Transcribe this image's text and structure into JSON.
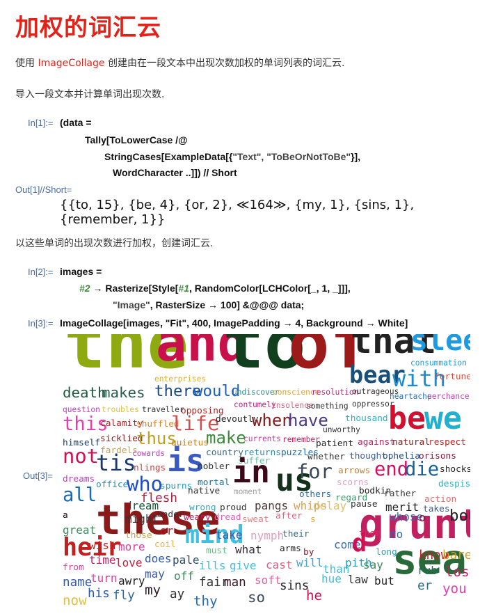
{
  "page": {
    "title": "加权的词汇云",
    "intro_prefix": "使用 ",
    "intro_link": "ImageCollage",
    "intro_suffix": " 创建由在一段文本中出现次数加权的单词列表的词汇云.",
    "step1": "导入一段文本并计算单词出现次数.",
    "step2": "以这些单词的出现次数进行加权，创建词汇云."
  },
  "cells": {
    "in1_label": "In[1]:=",
    "in1_line1": "(data =",
    "in1_line2": "Tally[ToLowerCase /@",
    "in1_line3a": "StringCases[ExampleData[{",
    "in1_line3b": "\"Text\", \"ToBeOrNotToBe\"",
    "in1_line3c": "}],",
    "in1_line4": "WordCharacter ..]]) // Short",
    "out1_label": "Out[1]//Short=",
    "out1_value": "{{to, 15}, {be, 4}, {or, 2}, ≪164≫, {my, 1}, {sins, 1}, {remember, 1}}",
    "in2_label": "In[2]:=",
    "in2_line1": "images =",
    "in2_line2a": "#2",
    "in2_line2b": " → Rasterize[Style[",
    "in2_line2c": "#1",
    "in2_line2d": ", RandomColor[LCHColor[_, 1, _]]],",
    "in2_line3a": "\"Image\"",
    "in2_line3b": ", RasterSize → 100] &@@@ data;",
    "in3_label": "In[3]:=",
    "in3_line1": "ImageCollage[images, \"Fit\", 400, ImagePadding → 4, Background → White]",
    "out3_label": "Out[3]="
  },
  "word_cloud": [
    {
      "w": "the",
      "c": "#8faa10"
    },
    {
      "w": "and",
      "c": "#c8104a"
    },
    {
      "w": "to",
      "c": "#12401f"
    },
    {
      "w": "of",
      "c": "#9c1a1a"
    },
    {
      "w": "that",
      "c": "#222222"
    },
    {
      "w": "sleep",
      "c": "#1e9be0"
    },
    {
      "w": "consummation",
      "c": "#1e9be0"
    },
    {
      "w": "bear",
      "c": "#1a4f7a"
    },
    {
      "w": "with",
      "c": "#1a8bd0"
    },
    {
      "w": "fortune",
      "c": "#d8503a"
    },
    {
      "w": "enterprises",
      "c": "#e0b020"
    },
    {
      "w": "death",
      "c": "#1e5a3a"
    },
    {
      "w": "makes",
      "c": "#2a5a50"
    },
    {
      "w": "there",
      "c": "#1a4a8a"
    },
    {
      "w": "would",
      "c": "#1a60c0"
    },
    {
      "w": "undiscover",
      "c": "#2a8a8a"
    },
    {
      "w": "conscience",
      "c": "#e8a030"
    },
    {
      "w": "resolution",
      "c": "#c02080"
    },
    {
      "w": "outrageous",
      "c": "#333333"
    },
    {
      "w": "heartache",
      "c": "#2a70c0"
    },
    {
      "w": "perchance",
      "c": "#c040c0"
    },
    {
      "w": "question",
      "c": "#c040c0"
    },
    {
      "w": "troubles",
      "c": "#e0c040"
    },
    {
      "w": "traveller",
      "c": "#333333"
    },
    {
      "w": "opposing",
      "c": "#c02020"
    },
    {
      "w": "contumely",
      "c": "#c02080"
    },
    {
      "w": "insolence",
      "c": "#e06080"
    },
    {
      "w": "something",
      "c": "#333333"
    },
    {
      "w": "oppressor",
      "c": "#333333"
    },
    {
      "w": "this",
      "c": "#e040b0"
    },
    {
      "w": "calamity",
      "c": "#c02020"
    },
    {
      "w": "shuffled",
      "c": "#e08020"
    },
    {
      "w": "life",
      "c": "#d05050"
    },
    {
      "w": "devoutly",
      "c": "#222222"
    },
    {
      "w": "when",
      "c": "#8a1a1a"
    },
    {
      "w": "have",
      "c": "#4a3a8a"
    },
    {
      "w": "thousand",
      "c": "#2ab0c0"
    },
    {
      "w": "be",
      "c": "#d01030"
    },
    {
      "w": "we",
      "c": "#20b0d0"
    },
    {
      "w": "unworthy",
      "c": "#333333"
    },
    {
      "w": "himself",
      "c": "#1a3a6a"
    },
    {
      "w": "sicklied",
      "c": "#8a1a1a"
    },
    {
      "w": "thus",
      "c": "#c0a020"
    },
    {
      "w": "quietus",
      "c": "#d08020"
    },
    {
      "w": "make",
      "c": "#3a8a3a"
    },
    {
      "w": "currents",
      "c": "#c040a0"
    },
    {
      "w": "remember",
      "c": "#c02060"
    },
    {
      "w": "patient",
      "c": "#222222"
    },
    {
      "w": "against",
      "c": "#c02060"
    },
    {
      "w": "natural",
      "c": "#8a1a1a"
    },
    {
      "w": "respect",
      "c": "#c02020"
    },
    {
      "w": "fardels",
      "c": "#c0a060"
    },
    {
      "w": "cowards",
      "c": "#c040c0"
    },
    {
      "w": "country",
      "c": "#3a6a8a"
    },
    {
      "w": "returns",
      "c": "#2a8ab0"
    },
    {
      "w": "puzzles",
      "c": "#1a6ab0"
    },
    {
      "w": "whether",
      "c": "#333333"
    },
    {
      "w": "thought",
      "c": "#3a5aa0"
    },
    {
      "w": "ophelia",
      "c": "#1a4a8a"
    },
    {
      "w": "orisons",
      "c": "#8a1a3a"
    },
    {
      "w": "not",
      "c": "#d01050"
    },
    {
      "w": "tis",
      "c": "#1a3a6a"
    },
    {
      "w": "nlings",
      "c": "#d04040"
    },
    {
      "w": "is",
      "c": "#3a5ac0"
    },
    {
      "w": "nobler",
      "c": "#333333"
    },
    {
      "w": "suffer",
      "c": "#60c0a0"
    },
    {
      "w": "in",
      "c": "#3a0a1a"
    },
    {
      "w": "us",
      "c": "#12301a"
    },
    {
      "w": "for",
      "c": "#3a4a5a"
    },
    {
      "w": "arrows",
      "c": "#c08040"
    },
    {
      "w": "end",
      "c": "#d01060"
    },
    {
      "w": "die",
      "c": "#1a60a0"
    },
    {
      "w": "shocks",
      "c": "#222222"
    },
    {
      "w": "despis",
      "c": "#20b0c0"
    },
    {
      "w": "dreams",
      "c": "#c040c0"
    },
    {
      "w": "office",
      "c": "#2a8ab0"
    },
    {
      "w": "who",
      "c": "#1a4ad0"
    },
    {
      "w": "spurns",
      "c": "#20a0c0"
    },
    {
      "w": "mortal",
      "c": "#1a6a9a"
    },
    {
      "w": "scorns",
      "c": "#e0a0c0"
    },
    {
      "w": "all",
      "c": "#1a6ab0"
    },
    {
      "w": "flesh",
      "c": "#b02040"
    },
    {
      "w": "native",
      "c": "#333333"
    },
    {
      "w": "moment",
      "c": "#a0a0a0"
    },
    {
      "w": "others",
      "c": "#2a6ab0"
    },
    {
      "w": "regard",
      "c": "#3aa06a"
    },
    {
      "w": "bodkin",
      "c": "#222222"
    },
    {
      "w": "rather",
      "c": "#3a3a3a"
    },
    {
      "w": "action",
      "c": "#e07070"
    },
    {
      "w": "dream",
      "c": "#1a5a3a"
    },
    {
      "w": "wrong",
      "c": "#40a0c0"
    },
    {
      "w": "proud",
      "c": "#333333"
    },
    {
      "w": "pangs",
      "c": "#4a3a3a"
    },
    {
      "w": "whips",
      "c": "#e0a050"
    },
    {
      "w": "delay",
      "c": "#e0c070"
    },
    {
      "w": "pause",
      "c": "#333333"
    },
    {
      "w": "merit",
      "c": "#222222"
    },
    {
      "w": "takes",
      "c": "#3a5a8a"
    },
    {
      "w": "a",
      "c": "#2a0a0a"
    },
    {
      "w": "these",
      "c": "#8a1a1a"
    },
    {
      "w": "might",
      "c": "#333333"
    },
    {
      "w": "under",
      "c": "#333333"
    },
    {
      "w": "weary",
      "c": "#c02060"
    },
    {
      "w": "dread",
      "c": "#e060c0"
    },
    {
      "w": "sweat",
      "c": "#e08080"
    },
    {
      "w": "after",
      "c": "#e06080"
    },
    {
      "w": "s",
      "c": "#f0a020"
    },
    {
      "w": "grunt",
      "c": "#c02060"
    },
    {
      "w": "whose",
      "c": "#3a6ab0"
    },
    {
      "w": "o",
      "c": "#8a0a3a"
    },
    {
      "w": "bourn",
      "c": "#222222"
    },
    {
      "w": "great",
      "c": "#3a8a5a"
    },
    {
      "w": "those",
      "c": "#c0a040"
    },
    {
      "w": "or",
      "c": "#c01020"
    },
    {
      "w": "mind",
      "c": "#40c0e0"
    },
    {
      "w": "take",
      "c": "#3a5ab0"
    },
    {
      "w": "nymph",
      "c": "#e0a0c0"
    },
    {
      "w": "their",
      "c": "#2a6a8a"
    },
    {
      "w": "them",
      "c": "#e02060"
    },
    {
      "w": "no",
      "c": "#2a6ab0"
    },
    {
      "w": "heir",
      "c": "#c02020"
    },
    {
      "w": "wish",
      "c": "#c02020"
    },
    {
      "w": "more",
      "c": "#e040a0"
    },
    {
      "w": "coil",
      "c": "#f0b040"
    },
    {
      "w": "must",
      "c": "#60c080"
    },
    {
      "w": "what",
      "c": "#3a2a3a"
    },
    {
      "w": "arms",
      "c": "#222222"
    },
    {
      "w": "by",
      "c": "#8a1a2a"
    },
    {
      "w": "come",
      "c": "#3a6ab0"
    },
    {
      "w": "d",
      "c": "#d01050"
    },
    {
      "w": "long",
      "c": "#20a0c0"
    },
    {
      "w": "sea",
      "c": "#2a6a3a"
    },
    {
      "w": "know",
      "c": "#c02020"
    },
    {
      "w": "bare",
      "c": "#d0a020"
    },
    {
      "w": "from",
      "c": "#e040a0"
    },
    {
      "w": "time",
      "c": "#c02060"
    },
    {
      "w": "love",
      "c": "#c02040"
    },
    {
      "w": "does",
      "c": "#2a5ab0"
    },
    {
      "w": "pale",
      "c": "#2a4a6a"
    },
    {
      "w": "ills",
      "c": "#40c0e0"
    },
    {
      "w": "give",
      "c": "#40c0e0"
    },
    {
      "w": "cast",
      "c": "#e06080"
    },
    {
      "w": "will",
      "c": "#40a0e0"
    },
    {
      "w": "than",
      "c": "#40c0e0"
    },
    {
      "w": "pith",
      "c": "#20a0c0"
    },
    {
      "w": "say",
      "c": "#3a8a5a"
    },
    {
      "w": "rub",
      "c": "#1a6a5a"
    },
    {
      "w": "lose",
      "c": "#c02060"
    },
    {
      "w": "name",
      "c": "#3a5ab0"
    },
    {
      "w": "turn",
      "c": "#e040a0"
    },
    {
      "w": "awry",
      "c": "#222222"
    },
    {
      "w": "may",
      "c": "#3a5ab0"
    },
    {
      "w": "off",
      "c": "#3a8a5a"
    },
    {
      "w": "fair",
      "c": "#333333"
    },
    {
      "w": "man",
      "c": "#3a1a2a"
    },
    {
      "w": "soft",
      "c": "#e060a0"
    },
    {
      "w": "sins",
      "c": "#222222"
    },
    {
      "w": "hue",
      "c": "#40c0e0"
    },
    {
      "w": "law",
      "c": "#333333"
    },
    {
      "w": "but",
      "c": "#222222"
    },
    {
      "w": "er",
      "c": "#2a6a8a"
    },
    {
      "w": "you",
      "c": "#e040b0"
    },
    {
      "w": "now",
      "c": "#e0c040"
    },
    {
      "w": "his",
      "c": "#2a5ab0"
    },
    {
      "w": "fly",
      "c": "#2a6a9a"
    },
    {
      "w": "my",
      "c": "#2a1a2a"
    },
    {
      "w": "ay",
      "c": "#333333"
    },
    {
      "w": "thy",
      "c": "#2a6ab0"
    },
    {
      "w": "so",
      "c": "#3a4a5a"
    },
    {
      "w": "he",
      "c": "#d01050"
    }
  ]
}
